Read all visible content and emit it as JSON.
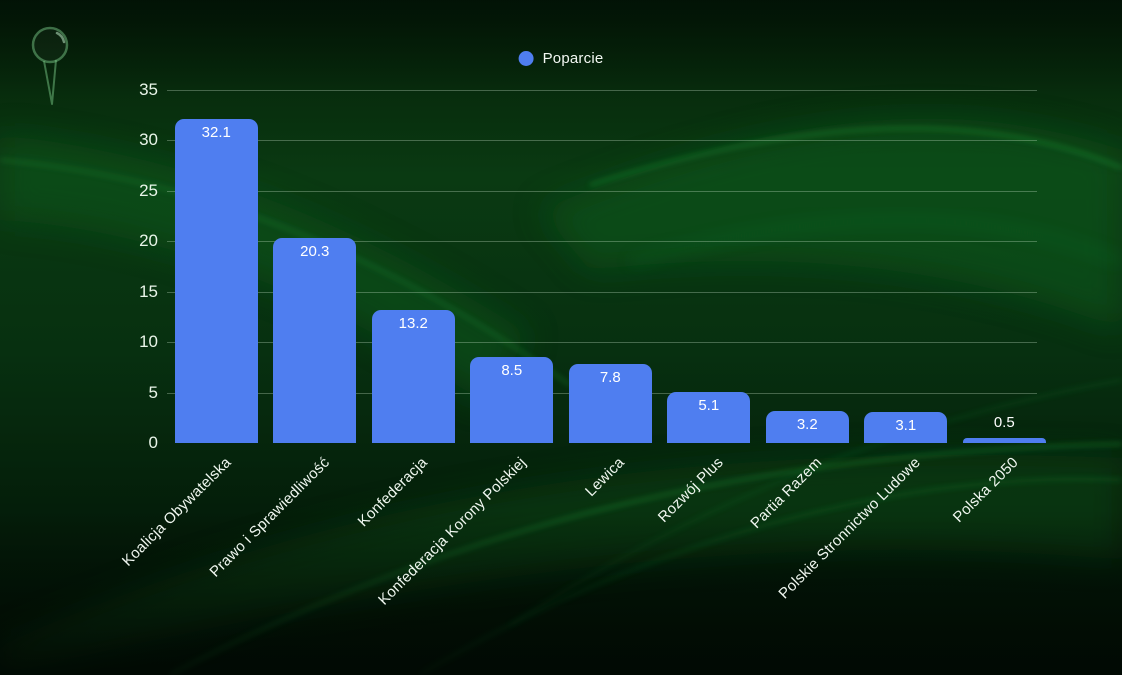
{
  "chart_data": {
    "type": "bar",
    "title": "",
    "xlabel": "",
    "ylabel": "",
    "legend": {
      "label": "Poparcie",
      "position": "top-center"
    },
    "categories": [
      "Koalicja Obywatelska",
      "Prawo i Sprawiedliwość",
      "Konfederacja",
      "Konfederacja Korony Polskiej",
      "Lewica",
      "Rozwój Plus",
      "Partia Razem",
      "Polskie Stronnictwo Ludowe",
      "Polska 2050"
    ],
    "series": [
      {
        "name": "Poparcie",
        "values": [
          32.1,
          20.3,
          13.2,
          8.5,
          7.8,
          5.1,
          3.2,
          3.1,
          0.5
        ]
      }
    ],
    "value_labels": [
      "32.1",
      "20.3",
      "13.2",
      "8.5",
      "7.8",
      "5.1",
      "3.2",
      "3.1",
      "0.5"
    ],
    "ylim": [
      0,
      35
    ],
    "y_ticks": [
      0,
      5,
      10,
      15,
      20,
      25,
      30,
      35
    ],
    "grid": true
  },
  "colors": {
    "bar": "#4f7ef0",
    "legend_marker": "#4f7ef0",
    "value_label_text": "#ffffff",
    "axis_tick_text": "#e9f5e9",
    "grid_line": "rgba(214,239,214,0.30)",
    "background_base": "#07310f"
  },
  "decorations": {
    "pin_icon": "push-pin",
    "background_style": "dark-green-silk-waves"
  }
}
